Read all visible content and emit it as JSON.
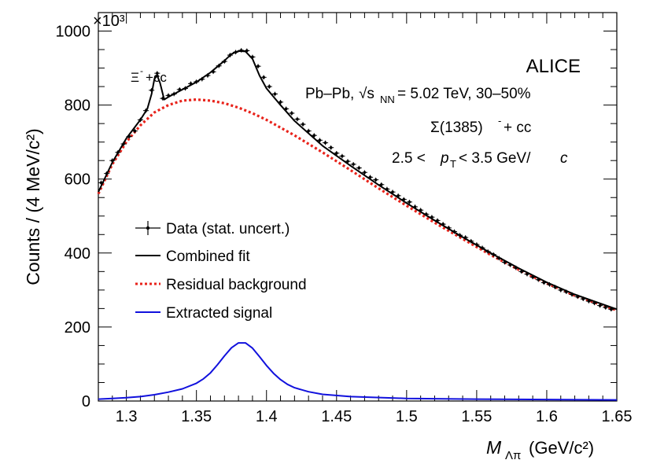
{
  "chart_data": {
    "type": "line",
    "experiment": "ALICE",
    "system": "Pb–Pb,",
    "energy_symbol": "√s",
    "energy_subscript": "NN",
    "energy_value": " = 5.02 TeV, 30–50%",
    "particle": "Σ(1385)",
    "particle_sup": "-",
    "particle_tail": " + cc",
    "pt_left": "2.5 < ",
    "pt_var": "p",
    "pt_sub": "T",
    "pt_right": " < 3.5 GeV/",
    "pt_unit_c": "c",
    "peak_annotation": "Ξ",
    "peak_annotation_sup": "-",
    "peak_annotation_tail": "+cc",
    "ylabel": "Counts / (4 MeV/c²)",
    "xlabel_var": "M",
    "xlabel_sub": "Λπ",
    "xlabel_unit": " (GeV/c²)",
    "y_multiplier": "×10³",
    "xlim": [
      1.28,
      1.65
    ],
    "ylim": [
      0,
      1050
    ],
    "x_ticks": [
      1.3,
      1.35,
      1.4,
      1.45,
      1.5,
      1.55,
      1.6,
      1.65
    ],
    "x_tick_labels": [
      "1.3",
      "1.35",
      "1.4",
      "1.45",
      "1.5",
      "1.55",
      "1.6",
      "1.65"
    ],
    "y_ticks": [
      0,
      200,
      400,
      600,
      800,
      1000
    ],
    "y_tick_labels": [
      "0",
      "200",
      "400",
      "600",
      "800",
      "1000"
    ],
    "legend": {
      "position": "center-left",
      "entries": [
        {
          "label": "Data (stat. uncert.)",
          "style": "marker"
        },
        {
          "label": "Combined fit",
          "style": "solid",
          "color": "#000000"
        },
        {
          "label": "Residual background",
          "style": "dotted",
          "color": "#e8231b"
        },
        {
          "label": "Extracted signal",
          "style": "solid",
          "color": "#1111dd"
        }
      ]
    },
    "colors": {
      "data": "#000000",
      "fit": "#000000",
      "background": "#e8231b",
      "signal": "#1111dd"
    },
    "series": [
      {
        "name": "Residual background",
        "x": [
          1.28,
          1.29,
          1.3,
          1.31,
          1.32,
          1.33,
          1.34,
          1.35,
          1.36,
          1.37,
          1.38,
          1.39,
          1.4,
          1.42,
          1.44,
          1.46,
          1.48,
          1.5,
          1.52,
          1.54,
          1.56,
          1.58,
          1.6,
          1.62,
          1.65
        ],
        "y": [
          560,
          640,
          700,
          745,
          780,
          800,
          812,
          815,
          812,
          805,
          793,
          778,
          760,
          718,
          672,
          624,
          575,
          528,
          482,
          438,
          395,
          355,
          318,
          285,
          245
        ]
      },
      {
        "name": "Extracted signal",
        "x": [
          1.28,
          1.29,
          1.3,
          1.31,
          1.32,
          1.33,
          1.34,
          1.35,
          1.355,
          1.36,
          1.365,
          1.37,
          1.375,
          1.38,
          1.385,
          1.39,
          1.395,
          1.4,
          1.405,
          1.41,
          1.415,
          1.42,
          1.43,
          1.44,
          1.46,
          1.5,
          1.55,
          1.6,
          1.65
        ],
        "y": [
          5,
          7,
          9,
          12,
          17,
          24,
          33,
          48,
          60,
          76,
          98,
          122,
          144,
          157,
          157,
          143,
          120,
          96,
          75,
          58,
          45,
          36,
          25,
          18,
          12,
          7,
          5,
          4,
          3
        ]
      },
      {
        "name": "Combined fit",
        "x": [
          1.28,
          1.29,
          1.3,
          1.31,
          1.315,
          1.318,
          1.32,
          1.322,
          1.324,
          1.327,
          1.33,
          1.34,
          1.35,
          1.36,
          1.37,
          1.375,
          1.38,
          1.385,
          1.39,
          1.395,
          1.4,
          1.41,
          1.42,
          1.44,
          1.46,
          1.48,
          1.5,
          1.52,
          1.54,
          1.56,
          1.58,
          1.6,
          1.62,
          1.65
        ],
        "y": [
          565,
          645,
          710,
          760,
          790,
          830,
          870,
          880,
          860,
          815,
          822,
          842,
          862,
          888,
          920,
          938,
          946,
          945,
          925,
          880,
          845,
          800,
          757,
          690,
          636,
          584,
          535,
          488,
          443,
          400,
          359,
          321,
          288,
          248
        ]
      },
      {
        "name": "Data (stat. uncert.)",
        "x": [
          1.282,
          1.286,
          1.29,
          1.294,
          1.298,
          1.302,
          1.306,
          1.31,
          1.314,
          1.318,
          1.322,
          1.326,
          1.33,
          1.334,
          1.338,
          1.342,
          1.346,
          1.35,
          1.354,
          1.358,
          1.362,
          1.366,
          1.37,
          1.374,
          1.378,
          1.382,
          1.386,
          1.39,
          1.394,
          1.398,
          1.402,
          1.406,
          1.41,
          1.414,
          1.418,
          1.422,
          1.426,
          1.43,
          1.434,
          1.438,
          1.442,
          1.446,
          1.45,
          1.454,
          1.458,
          1.462,
          1.466,
          1.47,
          1.474,
          1.478,
          1.482,
          1.486,
          1.49,
          1.494,
          1.498,
          1.502,
          1.506,
          1.51,
          1.514,
          1.518,
          1.522,
          1.526,
          1.53,
          1.534,
          1.538,
          1.542,
          1.546,
          1.55,
          1.554,
          1.558,
          1.562,
          1.566,
          1.57,
          1.574,
          1.578,
          1.582,
          1.586,
          1.59,
          1.594,
          1.598,
          1.602,
          1.606,
          1.61,
          1.614,
          1.618,
          1.622,
          1.626,
          1.63,
          1.634,
          1.638,
          1.642,
          1.646
        ],
        "y": [
          590,
          615,
          650,
          672,
          695,
          715,
          730,
          760,
          785,
          840,
          886,
          818,
          826,
          830,
          842,
          845,
          858,
          863,
          870,
          880,
          890,
          906,
          918,
          935,
          943,
          948,
          947,
          930,
          905,
          875,
          850,
          830,
          808,
          790,
          778,
          762,
          748,
          730,
          718,
          705,
          698,
          685,
          670,
          662,
          648,
          640,
          630,
          618,
          605,
          598,
          585,
          573,
          565,
          555,
          545,
          538,
          525,
          516,
          505,
          497,
          488,
          478,
          468,
          458,
          448,
          442,
          432,
          423,
          414,
          404,
          396,
          386,
          375,
          368,
          360,
          350,
          343,
          335,
          328,
          320,
          315,
          308,
          300,
          295,
          288,
          282,
          276,
          270,
          265,
          258,
          253,
          248
        ],
        "yerr": 6
      }
    ]
  }
}
